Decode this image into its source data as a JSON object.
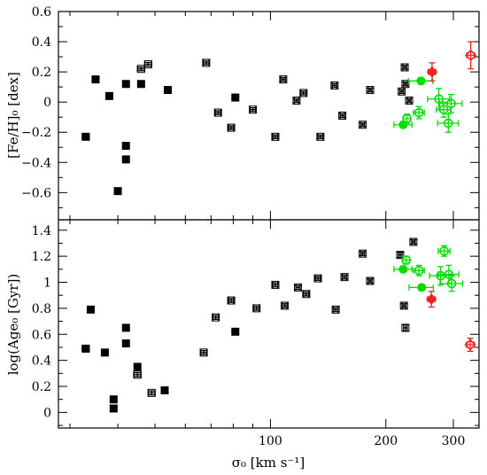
{
  "chart_data": {
    "type": "scatter",
    "xlabel": "σ₀ [km s⁻¹]",
    "xscale": "log",
    "xlim": [
      28,
      350
    ],
    "x_ticks": [
      100,
      200,
      300
    ],
    "panels": [
      {
        "ylabel": "[Fe/H]₀ [dex]",
        "ylim": [
          -0.78,
          0.6
        ],
        "y_ticks": [
          -0.6,
          -0.4,
          -0.2,
          0,
          0.2,
          0.4,
          0.6
        ],
        "y_tick_labels": [
          "−0.6",
          "−0.4",
          "−0.2",
          "0",
          "0.2",
          "0.4",
          "0.6"
        ],
        "series": [
          {
            "marker": "filled-square",
            "color": "#000000",
            "x": [
              33,
              35,
              38,
              40,
              42,
              42,
              42,
              46,
              54,
              81
            ],
            "y": [
              -0.23,
              0.15,
              0.04,
              -0.59,
              -0.29,
              -0.38,
              0.12,
              0.12,
              0.08,
              0.03
            ],
            "xerr": [
              0.7,
              0.7,
              0.7,
              0.7,
              0.7,
              0.7,
              0.7,
              0.7,
              0.7,
              1.2
            ],
            "yerr": [
              0.012,
              0.012,
              0.012,
              0.015,
              0.012,
              0.012,
              0.012,
              0.012,
              0.012,
              0.012
            ]
          },
          {
            "marker": "open-square",
            "color": "#000000",
            "x": [
              46,
              48,
              68,
              73,
              79,
              90,
              103,
              108,
              117,
              122,
              135,
              147,
              154,
              174,
              182,
              220,
              224,
              225,
              230
            ],
            "y": [
              0.22,
              0.25,
              0.26,
              -0.07,
              -0.17,
              -0.05,
              -0.23,
              0.15,
              0.01,
              0.06,
              -0.23,
              0.11,
              -0.09,
              -0.15,
              0.08,
              0.07,
              0.23,
              0.12,
              0.01
            ],
            "xerr": [
              1,
              1,
              1.2,
              1.2,
              1.2,
              1.5,
              1.5,
              1.5,
              1.5,
              2,
              2,
              2,
              2,
              2,
              2,
              2.5,
              2.5,
              2.5,
              2.5
            ],
            "yerr": [
              0.012,
              0.012,
              0.012,
              0.012,
              0.012,
              0.012,
              0.012,
              0.012,
              0.012,
              0.012,
              0.012,
              0.012,
              0.012,
              0.012,
              0.012,
              0.012,
              0.012,
              0.012,
              0.012
            ]
          },
          {
            "marker": "filled-circle",
            "color": "#00dd00",
            "x": [
              222,
              247
            ],
            "y": [
              -0.15,
              0.14
            ],
            "xerr": [
              12,
              18
            ],
            "yerr": [
              0.02,
              0.02
            ]
          },
          {
            "marker": "open-circle",
            "color": "#00dd00",
            "x": [
              227,
              244,
              275,
              283,
              291,
              296
            ],
            "y": [
              -0.11,
              -0.07,
              0.02,
              -0.05,
              -0.14,
              -0.01
            ],
            "xerr": [
              5,
              8,
              18,
              12,
              18,
              20
            ],
            "yerr": [
              0.03,
              0.04,
              0.07,
              0.05,
              0.06,
              0.06
            ]
          },
          {
            "marker": "filled-diamond",
            "color": "#ee2222",
            "x": [
              264
            ],
            "y": [
              0.2
            ],
            "xerr": [
              6
            ],
            "yerr": [
              0.06
            ]
          },
          {
            "marker": "open-diamond",
            "color": "#ee2222",
            "x": [
              333
            ],
            "y": [
              0.31
            ],
            "xerr": [
              8
            ],
            "yerr": [
              0.09
            ]
          }
        ]
      },
      {
        "ylabel": "log(Age₀ [Gyr])",
        "ylim": [
          -0.12,
          1.48
        ],
        "y_ticks": [
          0,
          0.2,
          0.4,
          0.6,
          0.8,
          1.0,
          1.2,
          1.4
        ],
        "y_tick_labels": [
          "0",
          "0.2",
          "0.4",
          "0.6",
          "0.8",
          "1",
          "1.2",
          "1.4"
        ],
        "series": [
          {
            "marker": "filled-square",
            "color": "#000000",
            "x": [
              33,
              34,
              37,
              39,
              39,
              42,
              42,
              45,
              53,
              81
            ],
            "y": [
              0.49,
              0.79,
              0.46,
              0.1,
              0.03,
              0.65,
              0.53,
              0.35,
              0.17,
              0.62
            ],
            "xerr": [
              0.7,
              0.7,
              0.7,
              0.7,
              0.7,
              0.7,
              0.7,
              0.7,
              0.7,
              1.2
            ],
            "yerr": [
              0.015,
              0.015,
              0.015,
              0.02,
              0.02,
              0.02,
              0.015,
              0.02,
              0.02,
              0.02
            ]
          },
          {
            "marker": "open-square",
            "color": "#000000",
            "x": [
              45,
              49,
              67,
              72,
              79,
              92,
              103,
              109,
              118,
              124,
              133,
              148,
              156,
              174,
              182,
              218,
              223,
              225,
              236
            ],
            "y": [
              0.29,
              0.15,
              0.46,
              0.73,
              0.86,
              0.8,
              0.98,
              0.82,
              0.96,
              0.91,
              1.03,
              0.79,
              1.04,
              1.22,
              1.01,
              1.21,
              0.82,
              0.65,
              1.31
            ],
            "xerr": [
              1,
              1,
              1.2,
              1.2,
              1.2,
              1.5,
              1.5,
              1.5,
              1.5,
              2,
              2,
              2,
              2,
              2,
              2,
              2.5,
              2.5,
              2.5,
              2.5
            ],
            "yerr": [
              0.015,
              0.015,
              0.015,
              0.015,
              0.015,
              0.015,
              0.015,
              0.015,
              0.015,
              0.015,
              0.015,
              0.015,
              0.015,
              0.015,
              0.015,
              0.02,
              0.015,
              0.025,
              0.015
            ]
          },
          {
            "marker": "filled-circle",
            "color": "#00dd00",
            "x": [
              222,
              248
            ],
            "y": [
              1.1,
              0.96
            ],
            "xerr": [
              12,
              18
            ],
            "yerr": [
              0.02,
              0.02
            ]
          },
          {
            "marker": "open-circle",
            "color": "#00dd00",
            "x": [
              226,
              244,
              278,
              284,
              292,
              297
            ],
            "y": [
              1.17,
              1.09,
              1.05,
              1.24,
              1.06,
              0.99
            ],
            "xerr": [
              5,
              8,
              18,
              10,
              18,
              20
            ],
            "yerr": [
              0.03,
              0.04,
              0.07,
              0.04,
              0.07,
              0.06
            ]
          },
          {
            "marker": "filled-diamond",
            "color": "#ee2222",
            "x": [
              263
            ],
            "y": [
              0.87
            ],
            "xerr": [
              6
            ],
            "yerr": [
              0.06
            ]
          },
          {
            "marker": "open-diamond",
            "color": "#ee2222",
            "x": [
              332
            ],
            "y": [
              0.52
            ],
            "xerr": [
              8
            ],
            "yerr": [
              0.05
            ]
          }
        ]
      }
    ]
  }
}
